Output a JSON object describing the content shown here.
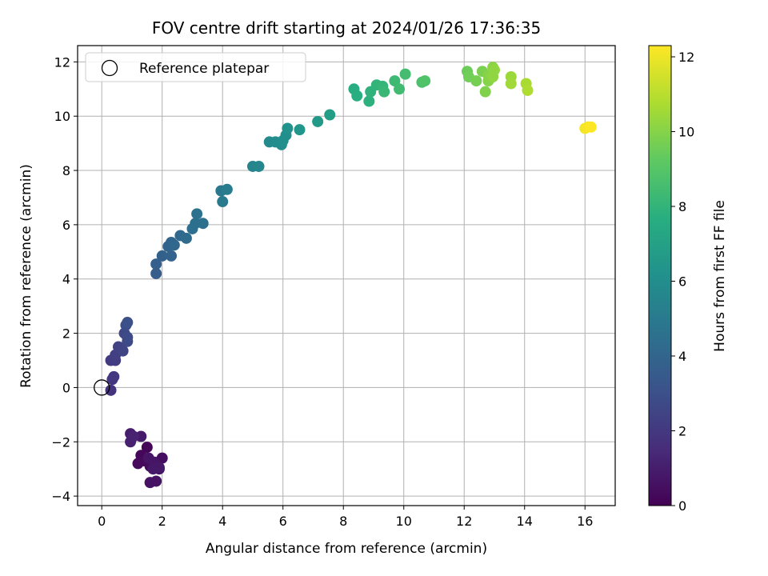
{
  "chart_data": {
    "type": "scatter",
    "title": "FOV centre drift starting at 2024/01/26 17:36:35",
    "xlabel": "Angular distance from reference (arcmin)",
    "ylabel": "Rotation from reference (arcmin)",
    "xlim": [
      -0.8,
      17.0
    ],
    "ylim": [
      -4.35,
      12.6
    ],
    "xticks": [
      0,
      2,
      4,
      6,
      8,
      10,
      12,
      14,
      16
    ],
    "yticks": [
      -4,
      -2,
      0,
      2,
      4,
      6,
      8,
      10,
      12
    ],
    "grid": true,
    "legend": {
      "placement": "top-left",
      "entries": [
        "Reference platepar"
      ]
    },
    "reference_point": {
      "x": 0,
      "y": 0,
      "label": "Reference platepar"
    },
    "colorbar": {
      "label": "Hours from first FF file",
      "colormap": "viridis",
      "range": [
        0,
        12.3
      ],
      "ticks": [
        0,
        2,
        4,
        6,
        8,
        10,
        12
      ]
    },
    "points": [
      {
        "x": 1.5,
        "y": -2.2,
        "h": 0.1
      },
      {
        "x": 1.3,
        "y": -2.5,
        "h": 0.2
      },
      {
        "x": 1.2,
        "y": -2.8,
        "h": 0.3
      },
      {
        "x": 1.4,
        "y": -2.7,
        "h": 0.3
      },
      {
        "x": 1.6,
        "y": -2.9,
        "h": 0.4
      },
      {
        "x": 1.8,
        "y": -2.8,
        "h": 0.4
      },
      {
        "x": 1.9,
        "y": -3.0,
        "h": 0.5
      },
      {
        "x": 2.0,
        "y": -2.6,
        "h": 0.5
      },
      {
        "x": 1.6,
        "y": -3.5,
        "h": 0.6
      },
      {
        "x": 1.8,
        "y": -3.45,
        "h": 0.6
      },
      {
        "x": 1.55,
        "y": -2.6,
        "h": 0.7
      },
      {
        "x": 1.75,
        "y": -2.75,
        "h": 0.7
      },
      {
        "x": 1.9,
        "y": -2.95,
        "h": 0.8
      },
      {
        "x": 1.7,
        "y": -3.0,
        "h": 0.8
      },
      {
        "x": 1.3,
        "y": -1.8,
        "h": 0.9
      },
      {
        "x": 0.95,
        "y": -1.7,
        "h": 1.0
      },
      {
        "x": 0.95,
        "y": -2.0,
        "h": 1.1
      },
      {
        "x": 1.05,
        "y": -1.8,
        "h": 1.2
      },
      {
        "x": 0.3,
        "y": -0.1,
        "h": 1.8
      },
      {
        "x": 0.35,
        "y": 0.3,
        "h": 1.9
      },
      {
        "x": 0.4,
        "y": 0.4,
        "h": 2.0
      },
      {
        "x": 0.3,
        "y": 1.0,
        "h": 2.1
      },
      {
        "x": 0.45,
        "y": 1.0,
        "h": 2.2
      },
      {
        "x": 0.45,
        "y": 1.2,
        "h": 2.3
      },
      {
        "x": 0.55,
        "y": 1.5,
        "h": 2.4
      },
      {
        "x": 0.7,
        "y": 1.35,
        "h": 2.5
      },
      {
        "x": 0.75,
        "y": 2.0,
        "h": 2.6
      },
      {
        "x": 0.85,
        "y": 1.7,
        "h": 2.7
      },
      {
        "x": 0.85,
        "y": 1.85,
        "h": 2.8
      },
      {
        "x": 0.8,
        "y": 2.3,
        "h": 2.9
      },
      {
        "x": 0.85,
        "y": 2.4,
        "h": 3.0
      },
      {
        "x": 1.8,
        "y": 4.2,
        "h": 3.6
      },
      {
        "x": 1.8,
        "y": 4.55,
        "h": 3.7
      },
      {
        "x": 2.0,
        "y": 4.85,
        "h": 3.8
      },
      {
        "x": 2.3,
        "y": 4.85,
        "h": 3.9
      },
      {
        "x": 2.2,
        "y": 5.2,
        "h": 4.0
      },
      {
        "x": 2.3,
        "y": 5.35,
        "h": 4.0
      },
      {
        "x": 2.4,
        "y": 5.25,
        "h": 4.1
      },
      {
        "x": 2.6,
        "y": 5.6,
        "h": 4.2
      },
      {
        "x": 2.8,
        "y": 5.5,
        "h": 4.3
      },
      {
        "x": 3.0,
        "y": 5.85,
        "h": 4.4
      },
      {
        "x": 3.1,
        "y": 6.05,
        "h": 4.5
      },
      {
        "x": 3.35,
        "y": 6.05,
        "h": 4.5
      },
      {
        "x": 3.15,
        "y": 6.4,
        "h": 4.6
      },
      {
        "x": 3.95,
        "y": 7.25,
        "h": 4.9
      },
      {
        "x": 4.0,
        "y": 6.85,
        "h": 5.0
      },
      {
        "x": 4.15,
        "y": 7.3,
        "h": 5.1
      },
      {
        "x": 5.0,
        "y": 8.15,
        "h": 5.5
      },
      {
        "x": 5.2,
        "y": 8.15,
        "h": 5.6
      },
      {
        "x": 5.55,
        "y": 9.05,
        "h": 5.8
      },
      {
        "x": 5.75,
        "y": 9.05,
        "h": 5.9
      },
      {
        "x": 5.95,
        "y": 8.95,
        "h": 6.0
      },
      {
        "x": 6.0,
        "y": 9.1,
        "h": 6.1
      },
      {
        "x": 6.1,
        "y": 9.3,
        "h": 6.1
      },
      {
        "x": 6.15,
        "y": 9.55,
        "h": 6.2
      },
      {
        "x": 6.55,
        "y": 9.5,
        "h": 6.4
      },
      {
        "x": 7.15,
        "y": 9.8,
        "h": 6.6
      },
      {
        "x": 7.55,
        "y": 10.05,
        "h": 6.8
      },
      {
        "x": 8.35,
        "y": 11.0,
        "h": 7.6
      },
      {
        "x": 8.45,
        "y": 10.75,
        "h": 7.7
      },
      {
        "x": 8.85,
        "y": 10.55,
        "h": 7.8
      },
      {
        "x": 8.9,
        "y": 10.9,
        "h": 7.9
      },
      {
        "x": 9.1,
        "y": 11.15,
        "h": 8.0
      },
      {
        "x": 9.3,
        "y": 11.1,
        "h": 8.1
      },
      {
        "x": 9.35,
        "y": 10.9,
        "h": 8.2
      },
      {
        "x": 9.7,
        "y": 11.3,
        "h": 8.3
      },
      {
        "x": 9.85,
        "y": 11.0,
        "h": 8.4
      },
      {
        "x": 10.05,
        "y": 11.55,
        "h": 8.5
      },
      {
        "x": 10.6,
        "y": 11.25,
        "h": 8.7
      },
      {
        "x": 10.7,
        "y": 11.3,
        "h": 8.8
      },
      {
        "x": 12.1,
        "y": 11.65,
        "h": 9.5
      },
      {
        "x": 12.15,
        "y": 11.45,
        "h": 9.6
      },
      {
        "x": 12.4,
        "y": 11.3,
        "h": 9.7
      },
      {
        "x": 12.6,
        "y": 11.65,
        "h": 9.8
      },
      {
        "x": 12.7,
        "y": 10.9,
        "h": 9.9
      },
      {
        "x": 12.8,
        "y": 11.3,
        "h": 10.0
      },
      {
        "x": 12.8,
        "y": 11.5,
        "h": 10.0
      },
      {
        "x": 12.95,
        "y": 11.8,
        "h": 10.1
      },
      {
        "x": 12.95,
        "y": 11.45,
        "h": 10.2
      },
      {
        "x": 13.0,
        "y": 11.7,
        "h": 10.2
      },
      {
        "x": 13.55,
        "y": 11.45,
        "h": 10.4
      },
      {
        "x": 13.55,
        "y": 11.2,
        "h": 10.5
      },
      {
        "x": 14.05,
        "y": 11.2,
        "h": 10.7
      },
      {
        "x": 14.1,
        "y": 10.95,
        "h": 10.8
      },
      {
        "x": 16.0,
        "y": 9.55,
        "h": 12.1
      },
      {
        "x": 16.1,
        "y": 9.6,
        "h": 12.2
      },
      {
        "x": 16.2,
        "y": 9.6,
        "h": 12.3
      }
    ]
  }
}
